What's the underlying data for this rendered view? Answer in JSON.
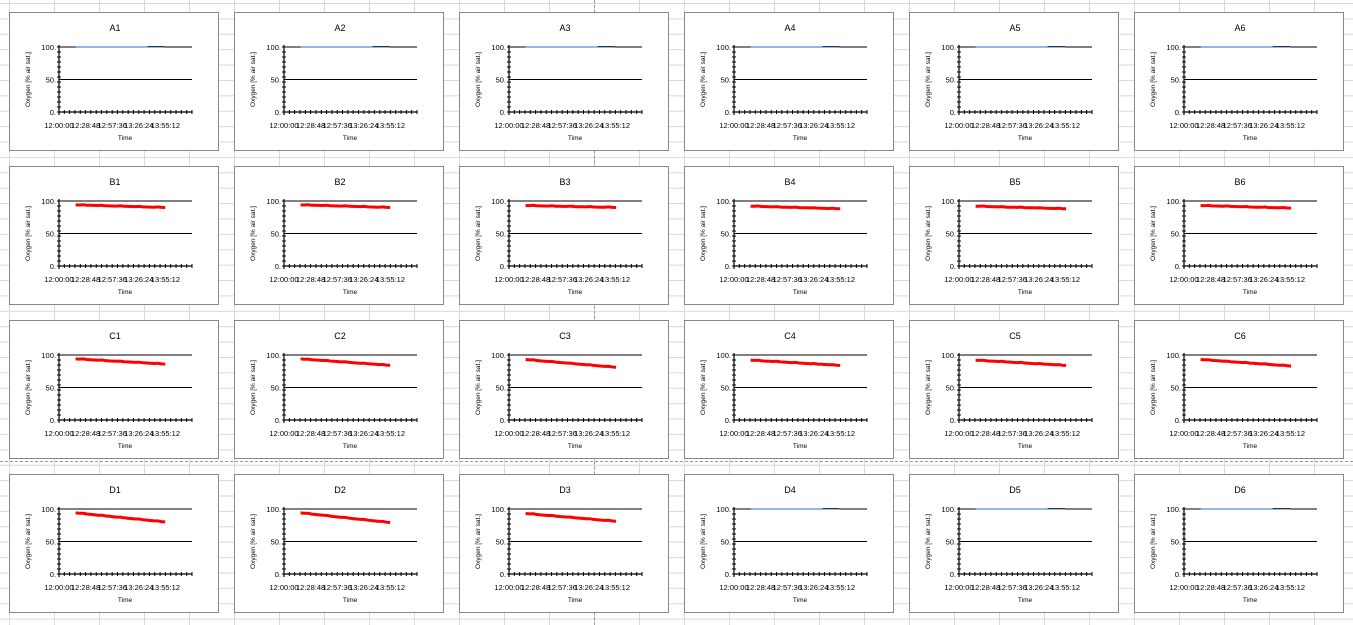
{
  "axis": {
    "ylabel": "Oxygen [% air sat.]",
    "xlabel": "Time",
    "ytick_labels": [
      "100.",
      "50.",
      "0."
    ],
    "xtick_labels": [
      "12:00:00",
      "12:28:48",
      "12:57:36",
      "13:26:24",
      "13:55:12"
    ]
  },
  "colors": {
    "empty": "#4a8fe0",
    "sample": "#ff0000",
    "axis": "#000000"
  },
  "chart_data": [
    {
      "type": "line",
      "title": "A1",
      "color": "#4a8fe0",
      "x": [
        "12:18",
        "13:54"
      ],
      "values": [
        100,
        100
      ],
      "ylim": [
        0,
        100
      ],
      "xlim": [
        "12:00:00",
        "14:24:00"
      ],
      "grid": "horizontal"
    },
    {
      "type": "line",
      "title": "A2",
      "color": "#4a8fe0",
      "x": [
        "12:18",
        "13:54"
      ],
      "values": [
        100,
        100
      ],
      "ylim": [
        0,
        100
      ],
      "xlim": [
        "12:00:00",
        "14:24:00"
      ],
      "grid": "horizontal"
    },
    {
      "type": "line",
      "title": "A3",
      "color": "#4a8fe0",
      "x": [
        "12:18",
        "13:55"
      ],
      "values": [
        100,
        100
      ],
      "ylim": [
        0,
        100
      ],
      "xlim": [
        "12:00:00",
        "14:24:00"
      ],
      "grid": "horizontal"
    },
    {
      "type": "line",
      "title": "A4",
      "color": "#4a8fe0",
      "x": [
        "12:18",
        "13:54"
      ],
      "values": [
        100,
        100
      ],
      "ylim": [
        0,
        100
      ],
      "xlim": [
        "12:00:00",
        "14:24:00"
      ],
      "grid": "horizontal"
    },
    {
      "type": "line",
      "title": "A5",
      "color": "#4a8fe0",
      "x": [
        "12:18",
        "13:55"
      ],
      "values": [
        100,
        100
      ],
      "ylim": [
        0,
        100
      ],
      "xlim": [
        "12:00:00",
        "14:24:00"
      ],
      "grid": "horizontal"
    },
    {
      "type": "line",
      "title": "A6",
      "color": "#4a8fe0",
      "x": [
        "12:18",
        "13:55"
      ],
      "values": [
        100,
        100
      ],
      "ylim": [
        0,
        100
      ],
      "xlim": [
        "12:00:00",
        "14:24:00"
      ],
      "grid": "horizontal"
    },
    {
      "type": "line",
      "title": "B1",
      "color": "#ff0000",
      "x": [
        "12:18",
        "13:55"
      ],
      "values": [
        94,
        90
      ],
      "ylim": [
        0,
        100
      ],
      "xlim": [
        "12:00:00",
        "14:24:00"
      ],
      "grid": "horizontal"
    },
    {
      "type": "line",
      "title": "B2",
      "color": "#ff0000",
      "x": [
        "12:18",
        "13:55"
      ],
      "values": [
        94,
        90
      ],
      "ylim": [
        0,
        100
      ],
      "xlim": [
        "12:00:00",
        "14:24:00"
      ],
      "grid": "horizontal"
    },
    {
      "type": "line",
      "title": "B3",
      "color": "#ff0000",
      "x": [
        "12:18",
        "13:56"
      ],
      "values": [
        93,
        90
      ],
      "ylim": [
        0,
        100
      ],
      "xlim": [
        "12:00:00",
        "14:24:00"
      ],
      "grid": "horizontal"
    },
    {
      "type": "line",
      "title": "B4",
      "color": "#ff0000",
      "x": [
        "12:18",
        "13:55"
      ],
      "values": [
        92,
        88
      ],
      "ylim": [
        0,
        100
      ],
      "xlim": [
        "12:00:00",
        "14:24:00"
      ],
      "grid": "horizontal"
    },
    {
      "type": "line",
      "title": "B5",
      "color": "#ff0000",
      "x": [
        "12:18",
        "13:56"
      ],
      "values": [
        92,
        88
      ],
      "ylim": [
        0,
        100
      ],
      "xlim": [
        "12:00:00",
        "14:24:00"
      ],
      "grid": "horizontal"
    },
    {
      "type": "line",
      "title": "B6",
      "color": "#ff0000",
      "x": [
        "12:18",
        "13:56"
      ],
      "values": [
        93,
        89
      ],
      "ylim": [
        0,
        100
      ],
      "xlim": [
        "12:00:00",
        "14:24:00"
      ],
      "grid": "horizontal"
    },
    {
      "type": "line",
      "title": "C1",
      "color": "#ff0000",
      "x": [
        "12:18",
        "13:55"
      ],
      "values": [
        94,
        86
      ],
      "ylim": [
        0,
        100
      ],
      "xlim": [
        "12:00:00",
        "14:24:00"
      ],
      "grid": "horizontal"
    },
    {
      "type": "line",
      "title": "C2",
      "color": "#ff0000",
      "x": [
        "12:18",
        "13:55"
      ],
      "values": [
        94,
        84
      ],
      "ylim": [
        0,
        100
      ],
      "xlim": [
        "12:00:00",
        "14:24:00"
      ],
      "grid": "horizontal"
    },
    {
      "type": "line",
      "title": "C3",
      "color": "#ff0000",
      "x": [
        "12:18",
        "13:56"
      ],
      "values": [
        93,
        81
      ],
      "ylim": [
        0,
        100
      ],
      "xlim": [
        "12:00:00",
        "14:24:00"
      ],
      "grid": "horizontal"
    },
    {
      "type": "line",
      "title": "C4",
      "color": "#ff0000",
      "x": [
        "12:18",
        "13:55"
      ],
      "values": [
        92,
        84
      ],
      "ylim": [
        0,
        100
      ],
      "xlim": [
        "12:00:00",
        "14:24:00"
      ],
      "grid": "horizontal"
    },
    {
      "type": "line",
      "title": "C5",
      "color": "#ff0000",
      "x": [
        "12:18",
        "13:56"
      ],
      "values": [
        92,
        84
      ],
      "ylim": [
        0,
        100
      ],
      "xlim": [
        "12:00:00",
        "14:24:00"
      ],
      "grid": "horizontal"
    },
    {
      "type": "line",
      "title": "C6",
      "color": "#ff0000",
      "x": [
        "12:18",
        "13:56"
      ],
      "values": [
        93,
        83
      ],
      "ylim": [
        0,
        100
      ],
      "xlim": [
        "12:00:00",
        "14:24:00"
      ],
      "grid": "horizontal"
    },
    {
      "type": "line",
      "title": "D1",
      "color": "#ff0000",
      "x": [
        "12:18",
        "13:55"
      ],
      "values": [
        94,
        80
      ],
      "ylim": [
        0,
        100
      ],
      "xlim": [
        "12:00:00",
        "14:24:00"
      ],
      "grid": "horizontal"
    },
    {
      "type": "line",
      "title": "D2",
      "color": "#ff0000",
      "x": [
        "12:18",
        "13:55"
      ],
      "values": [
        94,
        79
      ],
      "ylim": [
        0,
        100
      ],
      "xlim": [
        "12:00:00",
        "14:24:00"
      ],
      "grid": "horizontal"
    },
    {
      "type": "line",
      "title": "D3",
      "color": "#ff0000",
      "x": [
        "12:18",
        "13:56"
      ],
      "values": [
        93,
        81
      ],
      "ylim": [
        0,
        100
      ],
      "xlim": [
        "12:00:00",
        "14:24:00"
      ],
      "grid": "horizontal"
    },
    {
      "type": "line",
      "title": "D4",
      "color": "#4a8fe0",
      "x": [
        "12:18",
        "13:54"
      ],
      "values": [
        100,
        100
      ],
      "ylim": [
        0,
        100
      ],
      "xlim": [
        "12:00:00",
        "14:24:00"
      ],
      "grid": "horizontal"
    },
    {
      "type": "line",
      "title": "D5",
      "color": "#4a8fe0",
      "x": [
        "12:18",
        "13:55"
      ],
      "values": [
        100,
        100
      ],
      "ylim": [
        0,
        100
      ],
      "xlim": [
        "12:00:00",
        "14:24:00"
      ],
      "grid": "horizontal"
    },
    {
      "type": "line",
      "title": "D6",
      "color": "#4a8fe0",
      "x": [
        "12:18",
        "13:55"
      ],
      "values": [
        100,
        100
      ],
      "ylim": [
        0,
        100
      ],
      "xlim": [
        "12:00:00",
        "14:24:00"
      ],
      "grid": "horizontal"
    }
  ]
}
